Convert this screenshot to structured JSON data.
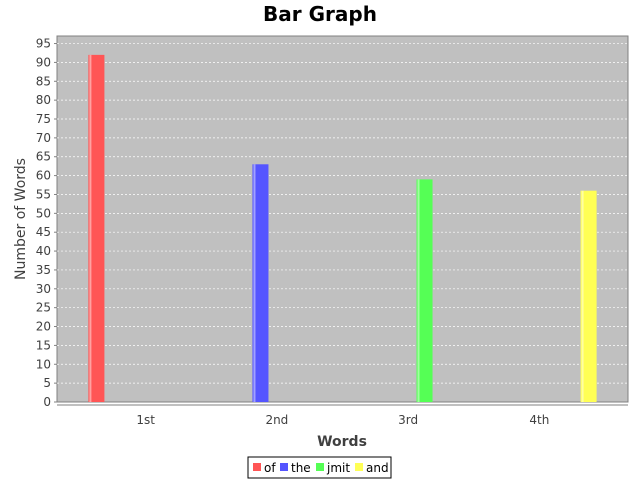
{
  "chart_data": {
    "type": "bar",
    "title": "Bar Graph",
    "xlabel": "Words",
    "ylabel": "Number of Words",
    "categories": [
      "1st",
      "2nd",
      "3rd",
      "4th"
    ],
    "series": [
      {
        "name": "of",
        "color": "#ff5555",
        "values": [
          92,
          null,
          null,
          null
        ]
      },
      {
        "name": "the",
        "color": "#5555ff",
        "values": [
          null,
          63,
          null,
          null
        ]
      },
      {
        "name": "jmit",
        "color": "#55ff55",
        "values": [
          null,
          null,
          59,
          null
        ]
      },
      {
        "name": "and",
        "color": "#ffff55",
        "values": [
          null,
          null,
          null,
          56
        ]
      }
    ],
    "ylim": [
      0,
      97
    ],
    "yticks": [
      0,
      5,
      10,
      15,
      20,
      25,
      30,
      35,
      40,
      45,
      50,
      55,
      60,
      65,
      70,
      75,
      80,
      85,
      90,
      95
    ],
    "grid": true,
    "legend_position": "bottom",
    "plot_background": "#c0c0c0"
  }
}
